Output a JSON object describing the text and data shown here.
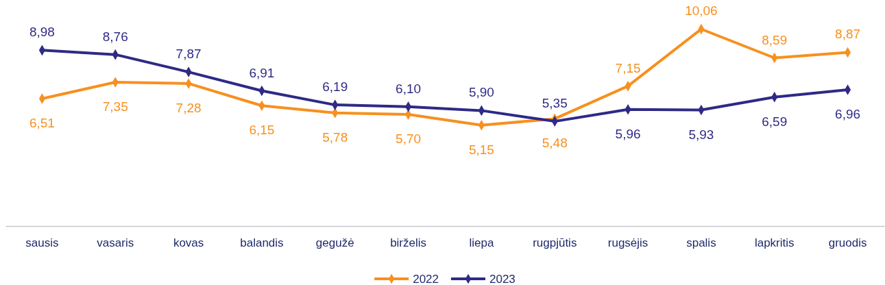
{
  "chart_data": {
    "type": "line",
    "categories": [
      "sausis",
      "vasaris",
      "kovas",
      "balandis",
      "gegužė",
      "birželis",
      "liepa",
      "rugpjūtis",
      "rugsėjis",
      "spalis",
      "lapkritis",
      "gruodis"
    ],
    "series": [
      {
        "name": "2022",
        "color": "#f7901e",
        "values": [
          6.51,
          7.35,
          7.28,
          6.15,
          5.78,
          5.7,
          5.15,
          5.48,
          7.15,
          10.06,
          8.59,
          8.87
        ],
        "value_labels": [
          "6,51",
          "7,35",
          "7,28",
          "6,15",
          "5,78",
          "5,70",
          "5,15",
          "5,48",
          "7,15",
          "10,06",
          "8,59",
          "8,87"
        ]
      },
      {
        "name": "2023",
        "color": "#2e2a86",
        "values": [
          8.98,
          8.76,
          7.87,
          6.91,
          6.19,
          6.1,
          5.9,
          5.35,
          5.96,
          5.93,
          6.59,
          6.96
        ],
        "value_labels": [
          "8,98",
          "8,76",
          "7,87",
          "6,91",
          "6,19",
          "6,10",
          "5,90",
          "5,35",
          "5,96",
          "5,93",
          "6,59",
          "6,96"
        ]
      }
    ],
    "tick_labels": "x",
    "marker": "diamond",
    "legend": "bottom"
  }
}
